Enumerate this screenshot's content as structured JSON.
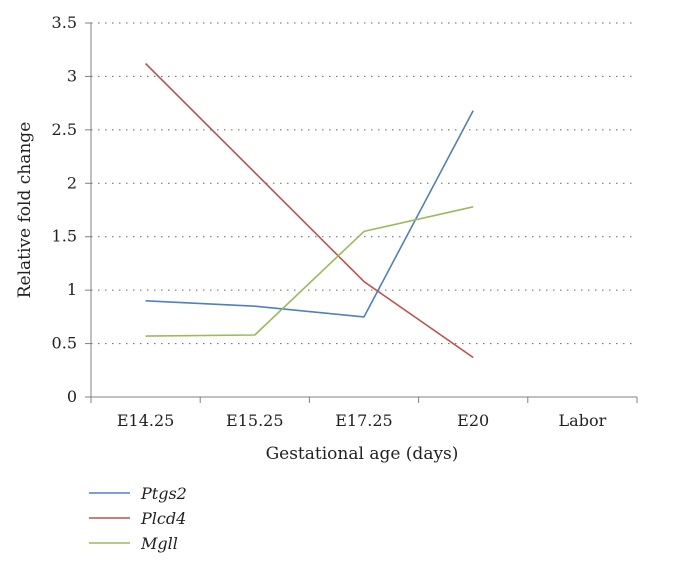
{
  "chart_data": {
    "type": "line",
    "xlabel": "Gestational age (days)",
    "ylabel": "Relative fold change",
    "ylim": [
      0,
      3.5
    ],
    "yticks": [
      "0",
      "0.5",
      "1",
      "1.5",
      "2",
      "2.5",
      "3",
      "3.5"
    ],
    "categories": [
      "E14.25",
      "E15.25",
      "E17.25",
      "E20",
      "Labor"
    ],
    "grid": "horizontal dotted",
    "legend_position": "bottom-left",
    "series": [
      {
        "name": "Ptgs2",
        "color": "#4f81bd",
        "values": [
          0.9,
          0.85,
          0.75,
          2.68,
          null
        ]
      },
      {
        "name": "Plcd4",
        "color": "#c0504d",
        "values": [
          3.12,
          2.1,
          1.08,
          0.37,
          null
        ]
      },
      {
        "name": "Mgll",
        "color": "#9bbb59",
        "values": [
          0.57,
          0.58,
          1.55,
          1.78,
          null
        ]
      }
    ]
  }
}
